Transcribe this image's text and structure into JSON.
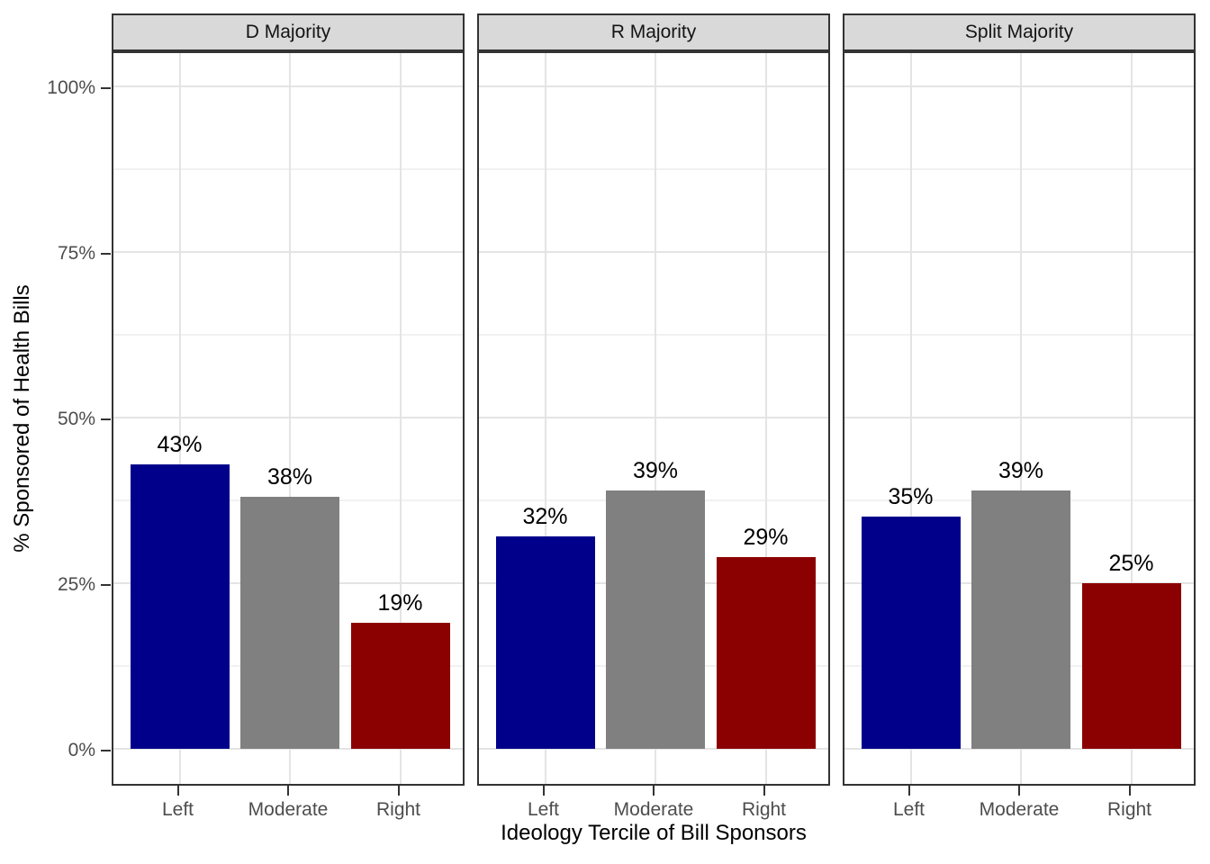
{
  "chart_data": {
    "type": "bar",
    "title": "",
    "xlabel": "Ideology Tercile of Bill Sponsors",
    "ylabel": "% Sponsored of Health Bills",
    "categories": [
      "Left",
      "Moderate",
      "Right"
    ],
    "facets": [
      {
        "label": "D Majority",
        "values": [
          43,
          38,
          19
        ],
        "bar_labels": [
          "43%",
          "38%",
          "19%"
        ]
      },
      {
        "label": "R Majority",
        "values": [
          32,
          39,
          29
        ],
        "bar_labels": [
          "32%",
          "39%",
          "29%"
        ]
      },
      {
        "label": "Split Majority",
        "values": [
          35,
          39,
          25
        ],
        "bar_labels": [
          "35%",
          "39%",
          "25%"
        ]
      }
    ],
    "bar_colors": [
      "#00008B",
      "#808080",
      "#8B0000"
    ],
    "y_ticks": [
      {
        "value": 0,
        "label": "0%"
      },
      {
        "value": 25,
        "label": "25%"
      },
      {
        "value": 50,
        "label": "50%"
      },
      {
        "value": 75,
        "label": "75%"
      },
      {
        "value": 100,
        "label": "100%"
      }
    ],
    "y_minor_ticks": [
      12.5,
      37.5,
      62.5,
      87.5
    ],
    "ylim": [
      -5.3,
      105.7
    ],
    "grid": true,
    "legend": "none",
    "styles": {
      "strip_background": "#D9D9D9",
      "panel_border": "#333333",
      "grid_major_color": "#E4E4E4",
      "grid_minor_color": "#F1F1F1",
      "tick_label_color": "#4D4D4D",
      "axis_title_color": "#000000",
      "bar_label_color": "#000000"
    }
  }
}
